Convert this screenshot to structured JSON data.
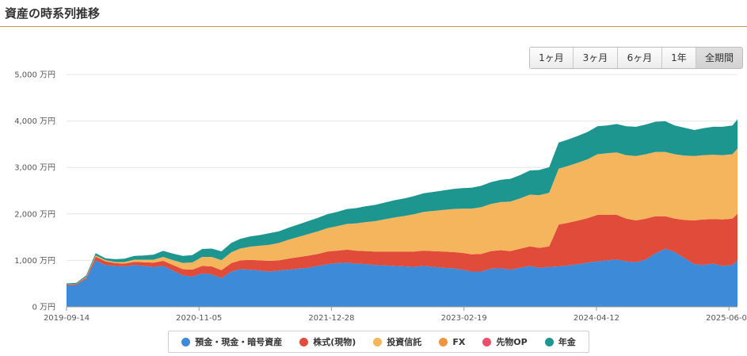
{
  "header": {
    "title": "資産の時系列推移"
  },
  "range_buttons": [
    {
      "label": "1ヶ月",
      "active": false
    },
    {
      "label": "3ヶ月",
      "active": false
    },
    {
      "label": "6ヶ月",
      "active": false
    },
    {
      "label": "1年",
      "active": false
    },
    {
      "label": "全期間",
      "active": true
    }
  ],
  "chart_data": {
    "type": "area",
    "stacked": true,
    "y_unit": "万円",
    "ylim": [
      0,
      5000
    ],
    "yticks": [
      "0 万円",
      "1,000 万円",
      "2,000 万円",
      "3,000 万円",
      "4,000 万円",
      "5,000 万円"
    ],
    "ytick_values": [
      0,
      1000,
      2000,
      3000,
      4000,
      5000
    ],
    "xlim": [
      "2019-09-14",
      "2025-07-01"
    ],
    "xticks": [
      "2019-09-14",
      "2020-11-05",
      "2021-12-28",
      "2023-02-19",
      "2024-04-12",
      "2025-06-04"
    ],
    "grid": true,
    "legend_position": "bottom",
    "x": [
      "2019-09-14",
      "2019-10-15",
      "2019-11-15",
      "2019-12-15",
      "2020-01-15",
      "2020-02-15",
      "2020-03-15",
      "2020-04-15",
      "2020-05-15",
      "2020-06-15",
      "2020-07-15",
      "2020-08-15",
      "2020-09-15",
      "2020-10-15",
      "2020-11-15",
      "2020-12-15",
      "2021-01-15",
      "2021-02-15",
      "2021-03-15",
      "2021-04-15",
      "2021-05-15",
      "2021-06-15",
      "2021-07-15",
      "2021-08-15",
      "2021-09-15",
      "2021-10-15",
      "2021-11-15",
      "2021-12-15",
      "2022-01-15",
      "2022-02-15",
      "2022-03-15",
      "2022-04-15",
      "2022-05-15",
      "2022-06-15",
      "2022-07-15",
      "2022-08-15",
      "2022-09-15",
      "2022-10-15",
      "2022-11-15",
      "2022-12-15",
      "2023-01-15",
      "2023-02-15",
      "2023-03-15",
      "2023-04-15",
      "2023-05-15",
      "2023-06-15",
      "2023-07-15",
      "2023-08-15",
      "2023-09-15",
      "2023-10-15",
      "2023-11-15",
      "2023-12-15",
      "2024-01-15",
      "2024-02-15",
      "2024-03-15",
      "2024-04-15",
      "2024-05-15",
      "2024-06-15",
      "2024-07-15",
      "2024-08-15",
      "2024-09-15",
      "2024-10-15",
      "2024-11-15",
      "2024-12-15",
      "2025-01-15",
      "2025-02-15",
      "2025-03-15",
      "2025-04-15",
      "2025-05-15",
      "2025-06-15",
      "2025-07-01"
    ],
    "series": [
      {
        "name": "預金・現金・暗号資産",
        "color": "#3d8ad8",
        "values": [
          460,
          470,
          600,
          1000,
          900,
          880,
          870,
          900,
          880,
          860,
          880,
          780,
          680,
          650,
          720,
          700,
          620,
          760,
          810,
          800,
          780,
          760,
          780,
          800,
          820,
          840,
          880,
          920,
          940,
          950,
          930,
          920,
          900,
          890,
          880,
          870,
          860,
          880,
          860,
          840,
          830,
          800,
          760,
          760,
          820,
          830,
          800,
          840,
          880,
          840,
          860,
          870,
          890,
          920,
          950,
          980,
          1000,
          1020,
          980,
          960,
          1020,
          1150,
          1250,
          1180,
          1050,
          920,
          900,
          930,
          880,
          900,
          1000
        ]
      },
      {
        "name": "株式(現物)",
        "color": "#e04b3a",
        "values": [
          20,
          20,
          30,
          80,
          80,
          60,
          60,
          70,
          80,
          90,
          110,
          120,
          130,
          150,
          160,
          170,
          170,
          180,
          190,
          210,
          220,
          230,
          220,
          240,
          250,
          260,
          260,
          270,
          270,
          280,
          280,
          280,
          290,
          300,
          310,
          320,
          330,
          330,
          340,
          350,
          350,
          360,
          370,
          380,
          380,
          390,
          400,
          410,
          420,
          430,
          440,
          900,
          920,
          940,
          960,
          1000,
          980,
          960,
          920,
          900,
          880,
          800,
          700,
          720,
          820,
          940,
          980,
          960,
          1000,
          1000,
          1000
        ]
      },
      {
        "name": "投資信託",
        "color": "#f5b55c",
        "values": [
          0,
          0,
          10,
          20,
          20,
          20,
          30,
          40,
          50,
          60,
          80,
          100,
          130,
          150,
          190,
          200,
          210,
          230,
          250,
          280,
          310,
          340,
          370,
          400,
          430,
          460,
          480,
          500,
          520,
          550,
          580,
          620,
          650,
          690,
          730,
          760,
          800,
          830,
          860,
          890,
          920,
          950,
          980,
          1000,
          1010,
          1030,
          1060,
          1080,
          1110,
          1130,
          1150,
          1200,
          1220,
          1240,
          1260,
          1300,
          1320,
          1340,
          1360,
          1380,
          1380,
          1380,
          1380,
          1380,
          1380,
          1380,
          1380,
          1380,
          1380,
          1380,
          1400
        ]
      },
      {
        "name": "FX",
        "color": "#ef9440",
        "values": [
          5,
          5,
          5,
          5,
          5,
          5,
          5,
          5,
          5,
          5,
          5,
          5,
          5,
          5,
          5,
          5,
          5,
          5,
          5,
          5,
          5,
          5,
          5,
          5,
          5,
          5,
          5,
          5,
          5,
          5,
          5,
          5,
          5,
          5,
          5,
          5,
          5,
          5,
          5,
          5,
          5,
          5,
          5,
          5,
          5,
          5,
          5,
          5,
          5,
          5,
          5,
          5,
          5,
          5,
          5,
          5,
          5,
          5,
          5,
          5,
          5,
          5,
          5,
          5,
          5,
          5,
          5,
          5,
          5,
          5,
          5
        ]
      },
      {
        "name": "先物OP",
        "color": "#ea4f6c",
        "values": [
          0,
          0,
          0,
          0,
          0,
          0,
          0,
          0,
          0,
          0,
          0,
          0,
          0,
          0,
          0,
          0,
          0,
          0,
          0,
          0,
          0,
          0,
          0,
          0,
          0,
          0,
          0,
          0,
          0,
          0,
          0,
          0,
          0,
          0,
          0,
          0,
          0,
          0,
          0,
          0,
          0,
          0,
          0,
          0,
          0,
          0,
          0,
          0,
          0,
          0,
          0,
          0,
          0,
          0,
          0,
          0,
          0,
          0,
          0,
          0,
          0,
          0,
          0,
          0,
          0,
          0,
          0,
          0,
          0,
          0,
          0
        ]
      },
      {
        "name": "年金",
        "color": "#1e9690",
        "values": [
          20,
          20,
          30,
          50,
          40,
          60,
          70,
          80,
          90,
          110,
          130,
          140,
          150,
          160,
          170,
          180,
          190,
          200,
          210,
          220,
          230,
          250,
          250,
          260,
          270,
          280,
          290,
          300,
          310,
          320,
          330,
          340,
          350,
          360,
          370,
          380,
          390,
          400,
          410,
          420,
          430,
          440,
          450,
          460,
          470,
          480,
          490,
          500,
          520,
          540,
          550,
          560,
          570,
          580,
          590,
          600,
          600,
          610,
          620,
          630,
          640,
          650,
          660,
          620,
          600,
          560,
          580,
          600,
          610,
          620,
          630
        ]
      }
    ]
  }
}
